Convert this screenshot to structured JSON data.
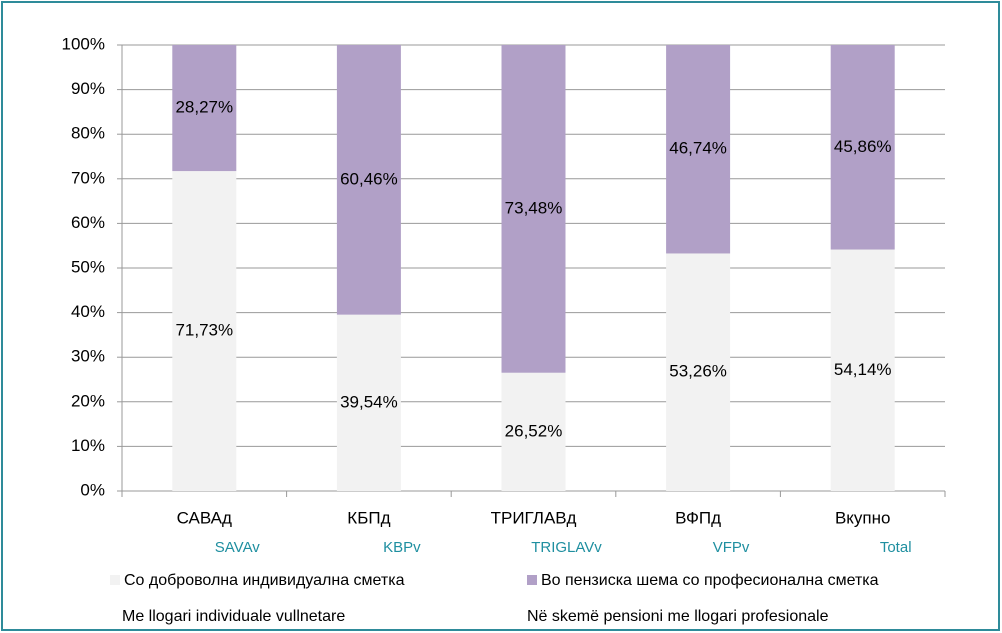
{
  "chart_data": {
    "type": "bar",
    "stacked": true,
    "categories": [
      "САВАд",
      "КБПд",
      "ТРИГЛАВд",
      "ВФПд",
      "Вкупно"
    ],
    "categories_alt": [
      "SAVAv",
      "KBPv",
      "TRIGLAVv",
      "VFPv",
      "Total"
    ],
    "series": [
      {
        "name": "Со доброволна индивидуална сметка",
        "name_alt": "Me llogari individuale vullnetare",
        "color": "#f2f2f2",
        "values": [
          71.73,
          39.54,
          26.52,
          53.26,
          54.14
        ],
        "value_labels": [
          "71,73%",
          "39,54%",
          "26,52%",
          "53,26%",
          "54,14%"
        ]
      },
      {
        "name": "Во пензиска шема со професионална сметка",
        "name_alt": "Në skemë pensioni me llogari profesionale",
        "color": "#b1a0c7",
        "values": [
          28.27,
          60.46,
          73.48,
          46.74,
          45.86
        ],
        "value_labels": [
          "28,27%",
          "60,46%",
          "73,48%",
          "46,74%",
          "45,86%"
        ]
      }
    ],
    "ylim": [
      0,
      100
    ],
    "yticks": [
      {
        "value": 0,
        "label": "0%"
      },
      {
        "value": 10,
        "label": "10%"
      },
      {
        "value": 20,
        "label": "20%"
      },
      {
        "value": 30,
        "label": "30%"
      },
      {
        "value": 40,
        "label": "40%"
      },
      {
        "value": 50,
        "label": "50%"
      },
      {
        "value": 60,
        "label": "60%"
      },
      {
        "value": 70,
        "label": "70%"
      },
      {
        "value": 80,
        "label": "80%"
      },
      {
        "value": 90,
        "label": "90%"
      },
      {
        "value": 100,
        "label": "100%"
      }
    ],
    "grid": true
  }
}
